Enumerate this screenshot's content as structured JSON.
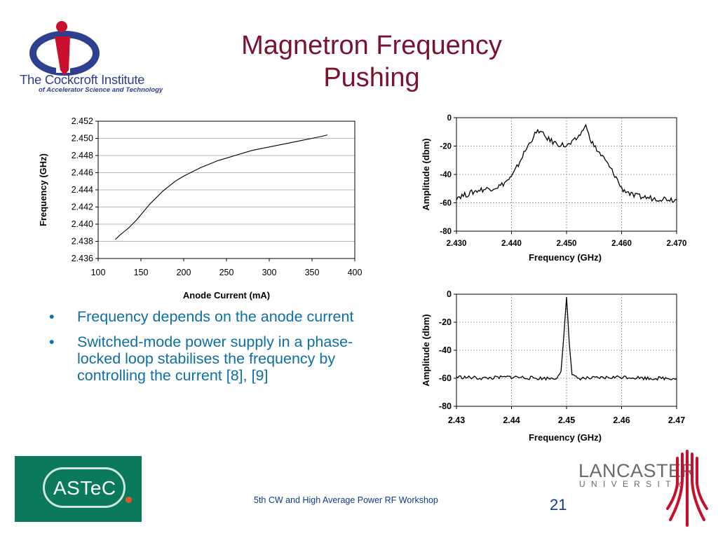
{
  "title": {
    "line1": "Magnetron Frequency",
    "line2": "Pushing"
  },
  "logos": {
    "cockcroft": {
      "name": "The Cockcroft Institute",
      "subtitle": "of Accelerator Science and Technology"
    },
    "astec": {
      "name": "ASTeC"
    },
    "lancaster": {
      "name": "LANCASTER",
      "subtitle": "UNIVERSITY"
    }
  },
  "bullets": [
    "Frequency depends on the anode current",
    "Switched-mode power supply in a phase-locked loop  stabilises the frequency by controlling the current [8], [9]"
  ],
  "footer": {
    "text": "5th CW and High Average Power RF Workshop",
    "page_number": "21"
  },
  "colors": {
    "title": "#7a1230",
    "bullet_text": "#0e6fa8",
    "footer_text": "#0e3b8f",
    "astec_bg": "#0b7a5c",
    "lancaster_red": "#c8102e",
    "cockcroft_blue": "#2e3f8f",
    "cockcroft_red": "#c8102e"
  },
  "chart_data": [
    {
      "type": "line",
      "title": "",
      "xlabel": "Anode Current (mA)",
      "ylabel": "Frequency (GHz)",
      "xlim": [
        100,
        400
      ],
      "ylim": [
        2.436,
        2.452
      ],
      "x_ticks": [
        "100",
        "150",
        "200",
        "250",
        "300",
        "350",
        "400"
      ],
      "y_ticks": [
        "2.436",
        "2.438",
        "2.440",
        "2.442",
        "2.444",
        "2.446",
        "2.448",
        "2.450",
        "2.452"
      ],
      "grid": "horizontal",
      "legend": "none",
      "series": [
        {
          "x": [
            120,
            125,
            130,
            135,
            140,
            145,
            150,
            155,
            160,
            165,
            170,
            175,
            180,
            185,
            190,
            195,
            200,
            210,
            220,
            230,
            240,
            250,
            260,
            270,
            280,
            290,
            300,
            310,
            320,
            330,
            340,
            350,
            360,
            368
          ],
          "values": [
            2.4382,
            2.4387,
            2.4391,
            2.4395,
            2.44,
            2.4405,
            2.4411,
            2.4417,
            2.4423,
            2.4428,
            2.4433,
            2.4438,
            2.4442,
            2.4446,
            2.445,
            2.4453,
            2.4456,
            2.4461,
            2.4466,
            2.447,
            2.4474,
            2.4477,
            2.448,
            2.4483,
            2.4486,
            2.4488,
            2.449,
            2.4492,
            2.4494,
            2.4496,
            2.4498,
            2.45,
            2.4502,
            2.4504
          ]
        }
      ]
    },
    {
      "type": "line",
      "title": "",
      "xlabel": "Frequency (GHz)",
      "ylabel": "Amplitude (dbm)",
      "xlim": [
        2.43,
        2.47
      ],
      "ylim": [
        -80,
        0
      ],
      "x_ticks": [
        "2.430",
        "2.440",
        "2.450",
        "2.460",
        "2.470"
      ],
      "y_ticks": [
        "-80",
        "-60",
        "-40",
        "-20",
        "0"
      ],
      "grid": "both",
      "legend": "none",
      "series": [
        {
          "x": [
            2.43,
            2.432,
            2.434,
            2.436,
            2.438,
            2.439,
            2.44,
            2.441,
            2.442,
            2.443,
            2.444,
            2.445,
            2.446,
            2.447,
            2.448,
            2.449,
            2.45,
            2.451,
            2.452,
            2.453,
            2.4535,
            2.454,
            2.455,
            2.456,
            2.457,
            2.458,
            2.459,
            2.46,
            2.461,
            2.462,
            2.464,
            2.466,
            2.468,
            2.47
          ],
          "values": [
            -56,
            -54,
            -51,
            -50,
            -48,
            -45,
            -42,
            -35,
            -27,
            -20,
            -13,
            -9,
            -13,
            -16,
            -18,
            -19,
            -20,
            -18,
            -14,
            -9,
            -5,
            -12,
            -20,
            -25,
            -30,
            -36,
            -42,
            -50,
            -52,
            -55,
            -56,
            -57,
            -57,
            -58
          ]
        }
      ]
    },
    {
      "type": "line",
      "title": "",
      "xlabel": "Frequency (GHz)",
      "ylabel": "Amplitude (dbm)",
      "xlim": [
        2.43,
        2.47
      ],
      "ylim": [
        -80,
        0
      ],
      "x_ticks": [
        "2.43",
        "2.44",
        "2.45",
        "2.46",
        "2.47"
      ],
      "y_ticks": [
        "-80",
        "-60",
        "-40",
        "-20",
        "0"
      ],
      "grid": "both",
      "legend": "none",
      "series": [
        {
          "x": [
            2.43,
            2.435,
            2.44,
            2.445,
            2.448,
            2.449,
            2.4495,
            2.45,
            2.4505,
            2.451,
            2.452,
            2.455,
            2.46,
            2.465,
            2.47
          ],
          "values": [
            -59,
            -60,
            -59,
            -60,
            -60,
            -55,
            -30,
            -2,
            -35,
            -58,
            -60,
            -60,
            -59,
            -60,
            -60
          ]
        }
      ]
    }
  ]
}
